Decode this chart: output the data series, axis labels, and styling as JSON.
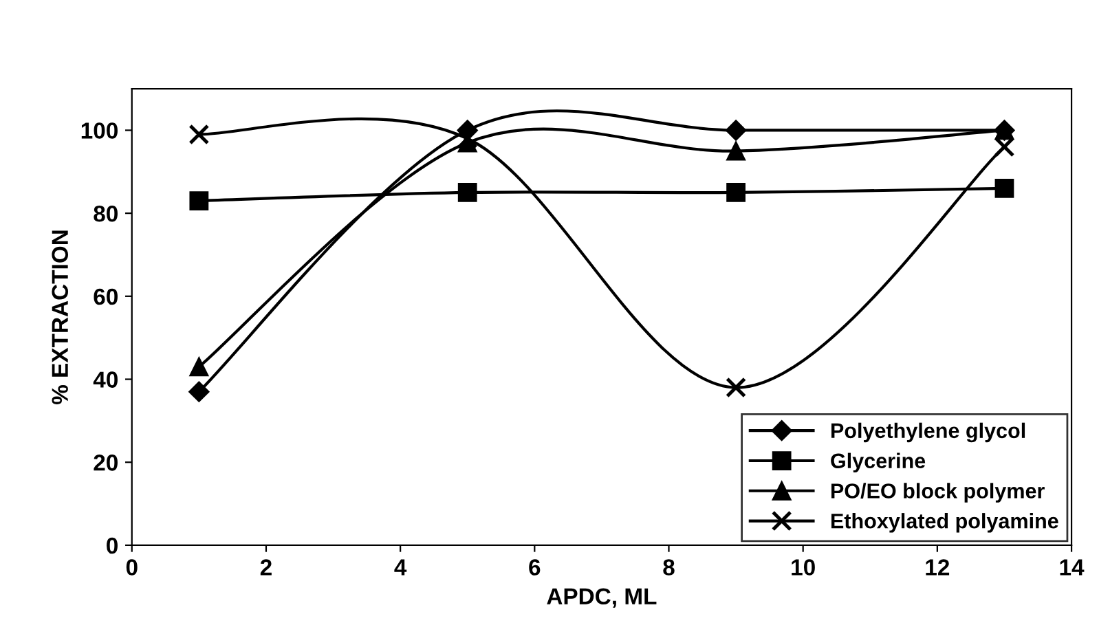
{
  "chart_data": {
    "type": "line",
    "xlabel": "APDC, ML",
    "ylabel": "% EXTRACTION",
    "x": [
      1,
      5,
      9,
      13
    ],
    "series": [
      {
        "name": "Polyethylene glycol",
        "color": "#000000",
        "marker": "diamond",
        "values": [
          37,
          100,
          100,
          100
        ]
      },
      {
        "name": "Glycerine",
        "color": "#000000",
        "marker": "square",
        "values": [
          83,
          85,
          85,
          86
        ]
      },
      {
        "name": "PO/EO block polymer",
        "color": "#000000",
        "marker": "triangle",
        "values": [
          43,
          97,
          95,
          100
        ]
      },
      {
        "name": "Ethoxylated polyamine",
        "color": "#000000",
        "marker": "cross",
        "values": [
          99,
          98,
          38,
          96
        ]
      }
    ],
    "xlim": [
      0,
      14
    ],
    "xticks": [
      0,
      2,
      4,
      6,
      8,
      10,
      12,
      14
    ],
    "ylim": [
      0,
      110
    ],
    "yticks": [
      0,
      20,
      40,
      60,
      80,
      100
    ],
    "grid": false,
    "legend": "bottom right",
    "line_style": "solid"
  }
}
